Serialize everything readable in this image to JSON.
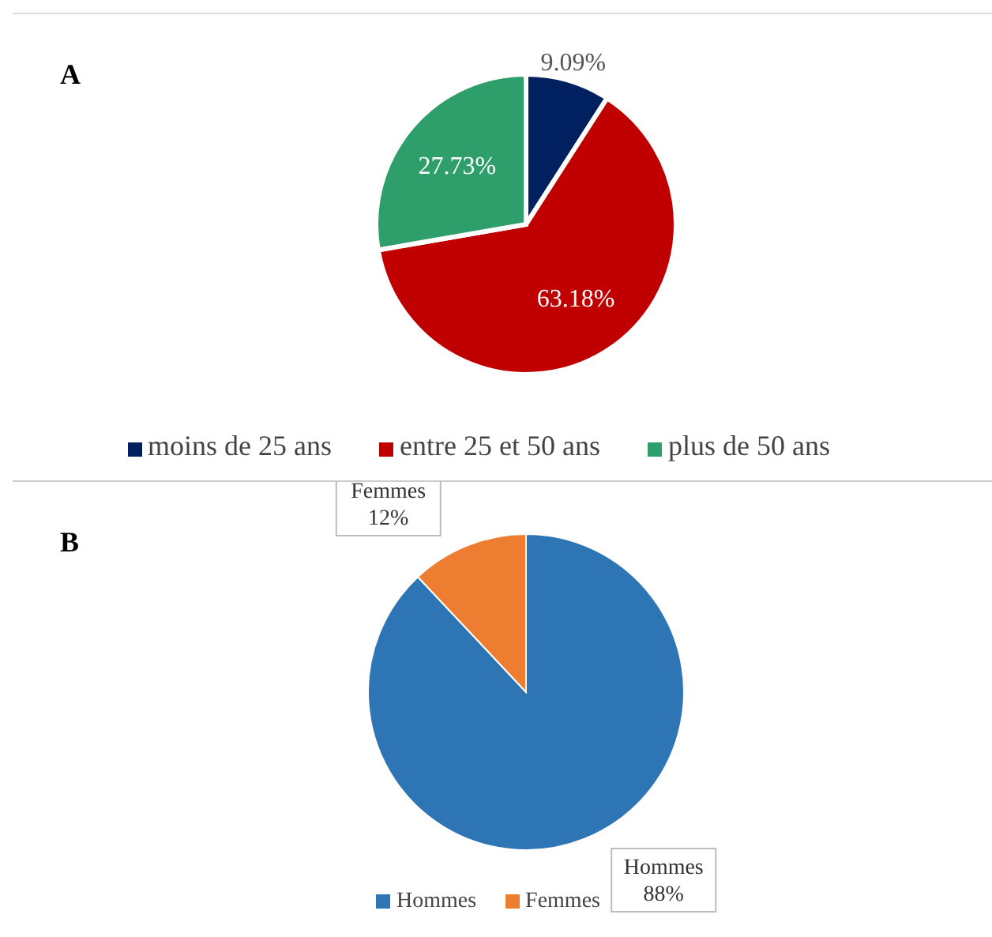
{
  "chart_data": [
    {
      "type": "pie",
      "title": "A",
      "categories": [
        "moins de 25 ans",
        "entre 25 et 50 ans",
        "plus de 50 ans"
      ],
      "values": [
        9.09,
        63.18,
        27.73
      ],
      "colors": [
        "#002060",
        "#c00000",
        "#2e9e6a"
      ],
      "value_labels": [
        "9.09%",
        "63.18%",
        "27.73%"
      ],
      "legend": "bottom"
    },
    {
      "type": "pie",
      "title": "B",
      "categories": [
        "Hommes",
        "Femmes"
      ],
      "values": [
        88,
        12
      ],
      "colors": [
        "#2e75b6",
        "#ed7d31"
      ],
      "value_labels": [
        "Hommes\n88%",
        "Femmes\n12%"
      ],
      "legend": "bottom"
    }
  ]
}
